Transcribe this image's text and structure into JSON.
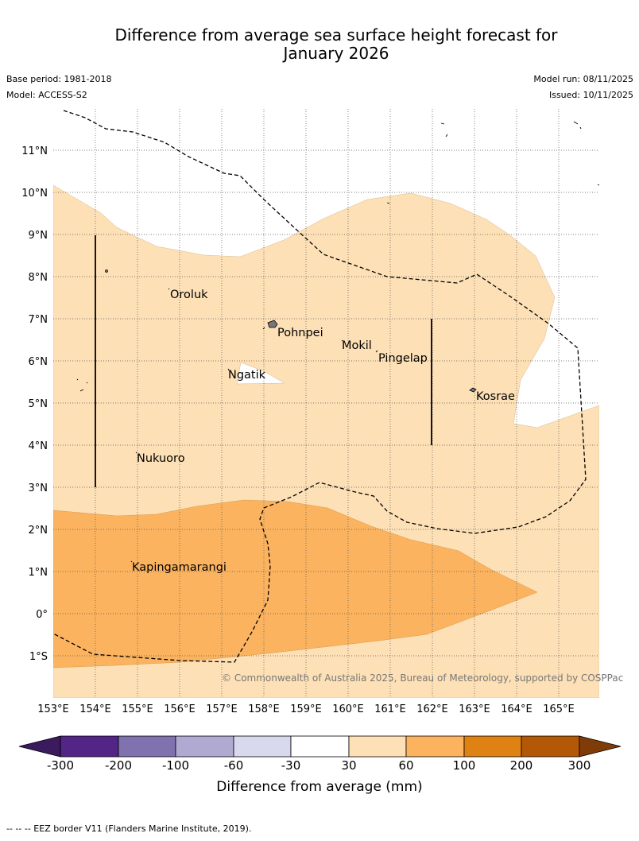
{
  "title_line1": "Difference from average sea surface height forecast for",
  "title_line2": "January 2026",
  "base_period": "Base period: 1981-2018",
  "model": "Model: ACCESS-S2",
  "model_run": "Model run: 08/11/2025",
  "issued": "Issued: 10/11/2025",
  "copyright": "© Commonwealth of Australia 2025, Bureau of Meteorology, supported by COSPPac",
  "lat_labels": [
    "11°N",
    "10°N",
    "9°N",
    "8°N",
    "7°N",
    "6°N",
    "5°N",
    "4°N",
    "3°N",
    "2°N",
    "1°N",
    "0°",
    "1°S"
  ],
  "lon_labels": [
    "153°E",
    "154°E",
    "155°E",
    "156°E",
    "157°E",
    "158°E",
    "159°E",
    "160°E",
    "161°E",
    "162°E",
    "163°E",
    "164°E",
    "165°E"
  ],
  "places": {
    "oroluk": "Oroluk",
    "pohnpei": "Pohnpei",
    "mokil": "Mokil",
    "pingelap": "Pingelap",
    "ngatik": "Ngatik",
    "kosrae": "Kosrae",
    "nukuoro": "Nukuoro",
    "kapingamarangi": "Kapingamarangi"
  },
  "colorbar": {
    "title": "Difference from average (mm)",
    "ticks": [
      "-300",
      "-200",
      "-100",
      "-60",
      "-30",
      "30",
      "60",
      "100",
      "200",
      "300"
    ],
    "colors": [
      "#3b1a5e",
      "#532586",
      "#7f72ae",
      "#b0a9d1",
      "#d9d9ed",
      "#ffffff",
      "#fde0b6",
      "#fbb35f",
      "#e08213",
      "#b35806",
      "#7f3b08"
    ]
  },
  "footer": "--  --  -- EEZ border V11 (Flanders Marine Institute, 2019)."
}
